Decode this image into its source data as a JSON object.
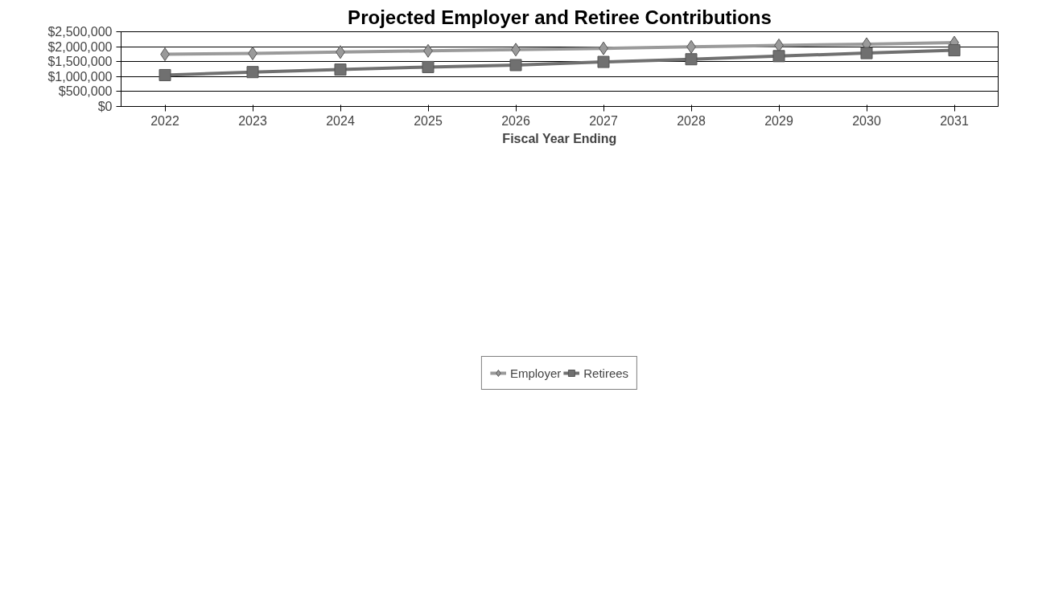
{
  "chart_data": {
    "type": "line",
    "title": "Projected Employer and Retiree Contributions",
    "xlabel": "Fiscal Year Ending",
    "categories": [
      "2022",
      "2023",
      "2024",
      "2025",
      "2026",
      "2027",
      "2028",
      "2029",
      "2030",
      "2031"
    ],
    "series": [
      {
        "name": "Employer",
        "color": "#9a9a9a",
        "marker": "diamond",
        "values": [
          1745000,
          1775000,
          1820000,
          1860000,
          1900000,
          1945000,
          1995000,
          2045000,
          2085000,
          2135000
        ]
      },
      {
        "name": "Retirees",
        "color": "#707070",
        "marker": "square",
        "values": [
          1050000,
          1150000,
          1235000,
          1320000,
          1385000,
          1490000,
          1580000,
          1685000,
          1785000,
          1880000
        ]
      }
    ],
    "ylim": [
      0,
      2500000
    ],
    "yticks": [
      {
        "value": 0,
        "label": "$0"
      },
      {
        "value": 500000,
        "label": "$500,000"
      },
      {
        "value": 1000000,
        "label": "$1,000,000"
      },
      {
        "value": 1500000,
        "label": "$1,500,000"
      },
      {
        "value": 2000000,
        "label": "$2,000,000"
      },
      {
        "value": 2500000,
        "label": "$2,500,000"
      }
    ],
    "grid": "y",
    "legend": "bottom",
    "line_style": "solid"
  }
}
